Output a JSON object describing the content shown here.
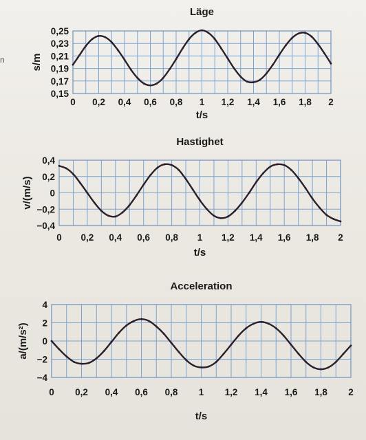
{
  "margin_mark": "n",
  "chart_data": [
    {
      "type": "line",
      "title": "Läge",
      "xlabel": "t/s",
      "ylabel": "s/m",
      "xlim": [
        0,
        2
      ],
      "ylim": [
        0.15,
        0.25
      ],
      "grid": true,
      "x_ticks": [
        "0",
        "0,2",
        "0,4",
        "0,6",
        "0,8",
        "1",
        "1,2",
        "1,4",
        "1,6",
        "1,8",
        "2"
      ],
      "y_ticks": [
        "0,15",
        "0,17",
        "0,19",
        "0,21",
        "0,23",
        "0,25"
      ],
      "series": [
        {
          "color": "#2a1f2a",
          "x": [
            0,
            0.05,
            0.1,
            0.15,
            0.2,
            0.25,
            0.3,
            0.35,
            0.4,
            0.45,
            0.5,
            0.55,
            0.6,
            0.65,
            0.7,
            0.75,
            0.8,
            0.85,
            0.9,
            0.95,
            1.0,
            1.05,
            1.1,
            1.15,
            1.2,
            1.25,
            1.3,
            1.35,
            1.4,
            1.45,
            1.5,
            1.55,
            1.6,
            1.65,
            1.7,
            1.75,
            1.8,
            1.85,
            1.9,
            1.95,
            2.0
          ],
          "y": [
            0.196,
            0.211,
            0.226,
            0.237,
            0.242,
            0.24,
            0.232,
            0.219,
            0.204,
            0.188,
            0.175,
            0.166,
            0.163,
            0.166,
            0.175,
            0.189,
            0.205,
            0.222,
            0.237,
            0.247,
            0.251,
            0.247,
            0.237,
            0.222,
            0.206,
            0.19,
            0.177,
            0.169,
            0.168,
            0.172,
            0.182,
            0.196,
            0.212,
            0.227,
            0.239,
            0.246,
            0.247,
            0.241,
            0.229,
            0.214,
            0.198
          ]
        }
      ]
    },
    {
      "type": "line",
      "title": "Hastighet",
      "xlabel": "t/s",
      "ylabel": "v/(m/s)",
      "xlim": [
        0,
        2
      ],
      "ylim": [
        -0.4,
        0.4
      ],
      "grid": true,
      "x_ticks": [
        "0",
        "0,2",
        "0,4",
        "0,6",
        "0,8",
        "1",
        "1,2",
        "1,4",
        "1,6",
        "1,8",
        "2"
      ],
      "y_ticks": [
        "−0,4",
        "−0,2",
        "0",
        "0,2",
        "0,4"
      ],
      "series": [
        {
          "color": "#2a1f2a",
          "x": [
            0,
            0.05,
            0.1,
            0.15,
            0.2,
            0.25,
            0.3,
            0.35,
            0.4,
            0.45,
            0.5,
            0.55,
            0.6,
            0.65,
            0.7,
            0.75,
            0.8,
            0.85,
            0.9,
            0.95,
            1.0,
            1.05,
            1.1,
            1.15,
            1.2,
            1.25,
            1.3,
            1.35,
            1.4,
            1.45,
            1.5,
            1.55,
            1.6,
            1.65,
            1.7,
            1.75,
            1.8,
            1.85,
            1.9,
            1.95,
            2.0
          ],
          "y": [
            0.33,
            0.3,
            0.23,
            0.12,
            0.0,
            -0.12,
            -0.22,
            -0.28,
            -0.29,
            -0.24,
            -0.15,
            -0.03,
            0.1,
            0.22,
            0.31,
            0.35,
            0.34,
            0.28,
            0.17,
            0.04,
            -0.09,
            -0.2,
            -0.28,
            -0.31,
            -0.29,
            -0.22,
            -0.12,
            0.0,
            0.13,
            0.24,
            0.32,
            0.35,
            0.34,
            0.28,
            0.18,
            0.06,
            -0.07,
            -0.18,
            -0.27,
            -0.32,
            -0.35
          ]
        }
      ]
    },
    {
      "type": "line",
      "title": "Acceleration",
      "xlabel": "t/s",
      "ylabel": "a/(m/s²)",
      "xlim": [
        0,
        2
      ],
      "ylim": [
        -4,
        4
      ],
      "grid": true,
      "x_ticks": [
        "0",
        "0,2",
        "0,4",
        "0,6",
        "0,8",
        "1",
        "1,2",
        "1,4",
        "1,6",
        "1,8",
        "2"
      ],
      "y_ticks": [
        "−4",
        "−2",
        "0",
        "2",
        "4"
      ],
      "series": [
        {
          "color": "#2a1f2a",
          "x": [
            0,
            0.05,
            0.1,
            0.15,
            0.2,
            0.25,
            0.3,
            0.35,
            0.4,
            0.45,
            0.5,
            0.55,
            0.6,
            0.65,
            0.7,
            0.75,
            0.8,
            0.85,
            0.9,
            0.95,
            1.0,
            1.05,
            1.1,
            1.15,
            1.2,
            1.25,
            1.3,
            1.35,
            1.4,
            1.45,
            1.5,
            1.55,
            1.6,
            1.65,
            1.7,
            1.75,
            1.8,
            1.85,
            1.9,
            1.95,
            2.0
          ],
          "y": [
            0.0,
            -0.9,
            -1.7,
            -2.3,
            -2.5,
            -2.4,
            -1.9,
            -1.1,
            -0.1,
            0.9,
            1.7,
            2.2,
            2.4,
            2.2,
            1.6,
            0.8,
            -0.2,
            -1.2,
            -2.1,
            -2.7,
            -2.9,
            -2.8,
            -2.3,
            -1.4,
            -0.4,
            0.6,
            1.4,
            1.9,
            2.1,
            1.9,
            1.4,
            0.6,
            -0.4,
            -1.4,
            -2.3,
            -2.9,
            -3.1,
            -2.9,
            -2.3,
            -1.4,
            -0.5
          ]
        }
      ]
    }
  ]
}
